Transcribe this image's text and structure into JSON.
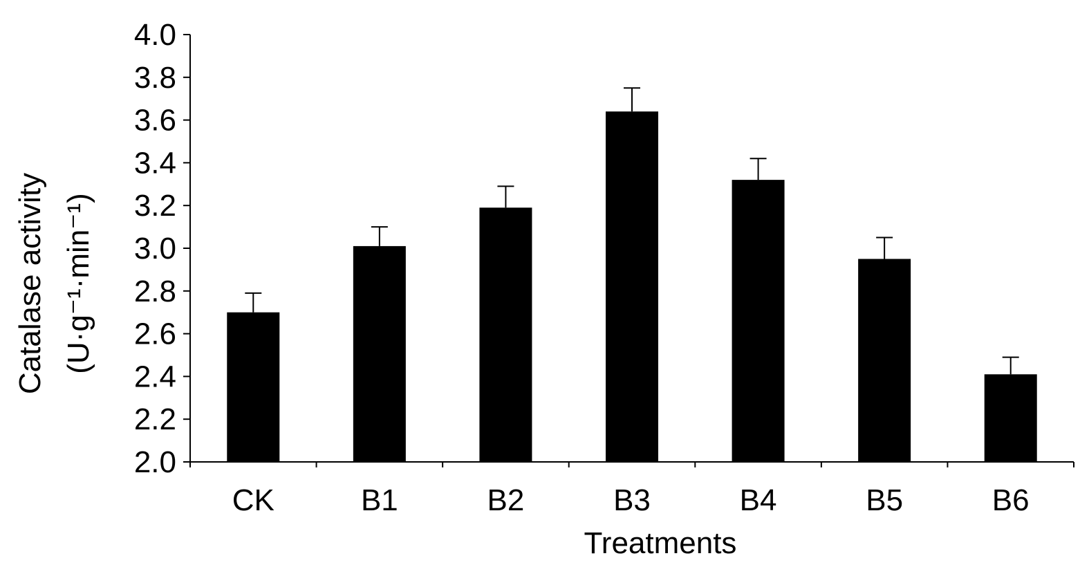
{
  "chart_data": {
    "type": "bar",
    "title": "",
    "xlabel": "Treatments",
    "ylabel_line1": "Catalase activity",
    "ylabel_line2": "(U·g⁻¹·min⁻¹)",
    "categories": [
      "CK",
      "B1",
      "B2",
      "B3",
      "B4",
      "B5",
      "B6"
    ],
    "values": [
      2.7,
      3.01,
      3.19,
      3.64,
      3.32,
      2.95,
      2.41
    ],
    "errors": [
      0.09,
      0.09,
      0.1,
      0.11,
      0.1,
      0.1,
      0.08
    ],
    "ylim": [
      2.0,
      4.0
    ],
    "yticks": [
      "2.0",
      "2.2",
      "2.4",
      "2.6",
      "2.8",
      "3.0",
      "3.2",
      "3.4",
      "3.6",
      "3.8",
      "4.0"
    ],
    "grid": false,
    "legend": "none",
    "bar_color": "#000000"
  }
}
